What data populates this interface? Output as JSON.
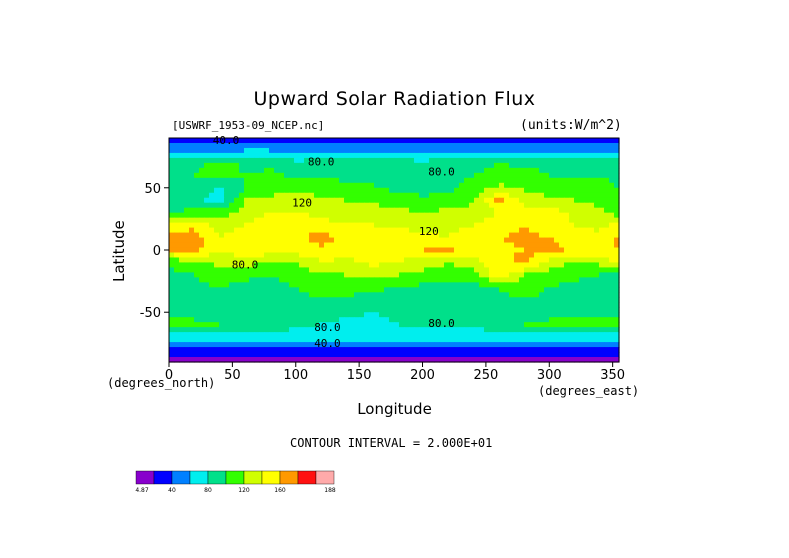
{
  "chart_data": {
    "type": "heatmap",
    "title": "Upward Solar Radiation Flux",
    "source_label": "[USWRF_1953-09_NCEP.nc]",
    "units_label": "(units:W/m^2)",
    "xlabel": "Longitude",
    "ylabel": "Latitude",
    "x_unit_note": "(degrees_east)",
    "y_unit_note": "(degrees_north)",
    "xlim": [
      0,
      355
    ],
    "ylim": [
      -90,
      90
    ],
    "x_ticks": [
      "0",
      "50",
      "100",
      "150",
      "200",
      "250",
      "300",
      "350"
    ],
    "y_ticks": [
      "50",
      "0",
      "-50"
    ],
    "contour_interval_text": "CONTOUR INTERVAL = 2.000E+01",
    "contour_labels": [
      "40.0",
      "80.0",
      "80.0",
      "120",
      "120",
      "80.0",
      "80.0",
      "80.0",
      "40.0"
    ],
    "colorbar": {
      "levels": [
        4.87,
        20,
        40,
        60,
        80,
        100,
        120,
        140,
        160,
        180,
        188
      ],
      "tick_labels": [
        "4.87",
        "40",
        "80",
        "120",
        "160",
        "188"
      ],
      "colors": [
        "#8800cc",
        "#0000ff",
        "#0080ff",
        "#00eeee",
        "#00e08a",
        "#33ff00",
        "#d0ff00",
        "#ffff00",
        "#ff9900",
        "#ff1111",
        "#ffaaaa"
      ]
    },
    "grid": false,
    "lat_values": [
      90,
      80,
      70,
      60,
      50,
      40,
      30,
      20,
      10,
      0,
      -10,
      -20,
      -30,
      -40,
      -50,
      -60,
      -70,
      -80,
      -90
    ],
    "lon_values": [
      0,
      20,
      40,
      60,
      80,
      100,
      120,
      140,
      160,
      180,
      200,
      220,
      240,
      260,
      280,
      300,
      320,
      340,
      355
    ],
    "values": [
      [
        30,
        30,
        30,
        30,
        30,
        30,
        30,
        30,
        30,
        30,
        30,
        30,
        30,
        30,
        30,
        30,
        30,
        30,
        30
      ],
      [
        50,
        55,
        55,
        60,
        60,
        55,
        55,
        50,
        50,
        50,
        55,
        55,
        60,
        55,
        55,
        50,
        50,
        55,
        50
      ],
      [
        90,
        95,
        110,
        95,
        95,
        85,
        90,
        90,
        95,
        90,
        85,
        90,
        95,
        100,
        95,
        90,
        90,
        95,
        90
      ],
      [
        95,
        100,
        110,
        100,
        105,
        95,
        100,
        95,
        100,
        85,
        80,
        90,
        100,
        105,
        110,
        100,
        95,
        100,
        95
      ],
      [
        95,
        100,
        75,
        100,
        110,
        115,
        110,
        105,
        100,
        95,
        90,
        95,
        110,
        125,
        115,
        105,
        110,
        105,
        100
      ],
      [
        95,
        85,
        70,
        120,
        125,
        130,
        125,
        120,
        115,
        110,
        105,
        110,
        115,
        165,
        135,
        125,
        120,
        115,
        105
      ],
      [
        100,
        105,
        110,
        130,
        140,
        140,
        135,
        125,
        130,
        125,
        120,
        125,
        130,
        140,
        145,
        150,
        135,
        125,
        110
      ],
      [
        150,
        155,
        125,
        140,
        150,
        155,
        150,
        140,
        140,
        135,
        130,
        135,
        140,
        150,
        160,
        145,
        140,
        135,
        145
      ],
      [
        165,
        170,
        140,
        155,
        160,
        155,
        170,
        150,
        150,
        155,
        145,
        140,
        150,
        160,
        165,
        160,
        150,
        145,
        165
      ],
      [
        160,
        165,
        145,
        150,
        155,
        150,
        155,
        150,
        155,
        150,
        160,
        165,
        150,
        155,
        160,
        165,
        155,
        150,
        160
      ],
      [
        105,
        115,
        125,
        130,
        115,
        120,
        140,
        135,
        145,
        140,
        130,
        120,
        135,
        150,
        170,
        130,
        120,
        125,
        150
      ],
      [
        95,
        100,
        110,
        105,
        100,
        110,
        115,
        120,
        125,
        120,
        115,
        110,
        105,
        160,
        120,
        110,
        105,
        100,
        90
      ],
      [
        90,
        95,
        100,
        95,
        90,
        100,
        105,
        110,
        105,
        100,
        95,
        90,
        95,
        100,
        110,
        100,
        95,
        90,
        85
      ],
      [
        85,
        90,
        85,
        90,
        85,
        95,
        100,
        95,
        90,
        85,
        90,
        85,
        90,
        95,
        100,
        95,
        90,
        85,
        80
      ],
      [
        80,
        85,
        80,
        85,
        80,
        85,
        90,
        85,
        80,
        85,
        80,
        85,
        80,
        85,
        90,
        85,
        80,
        85,
        80
      ],
      [
        120,
        110,
        100,
        95,
        90,
        85,
        80,
        75,
        75,
        80,
        85,
        80,
        85,
        90,
        100,
        110,
        120,
        115,
        120
      ],
      [
        70,
        70,
        70,
        70,
        70,
        70,
        70,
        70,
        70,
        70,
        70,
        70,
        70,
        70,
        70,
        70,
        70,
        70,
        70
      ],
      [
        35,
        35,
        35,
        35,
        35,
        35,
        35,
        35,
        35,
        35,
        35,
        35,
        35,
        35,
        35,
        35,
        35,
        35,
        35
      ],
      [
        15,
        15,
        15,
        15,
        15,
        15,
        15,
        15,
        15,
        15,
        15,
        15,
        15,
        15,
        15,
        15,
        15,
        15,
        15
      ]
    ]
  }
}
